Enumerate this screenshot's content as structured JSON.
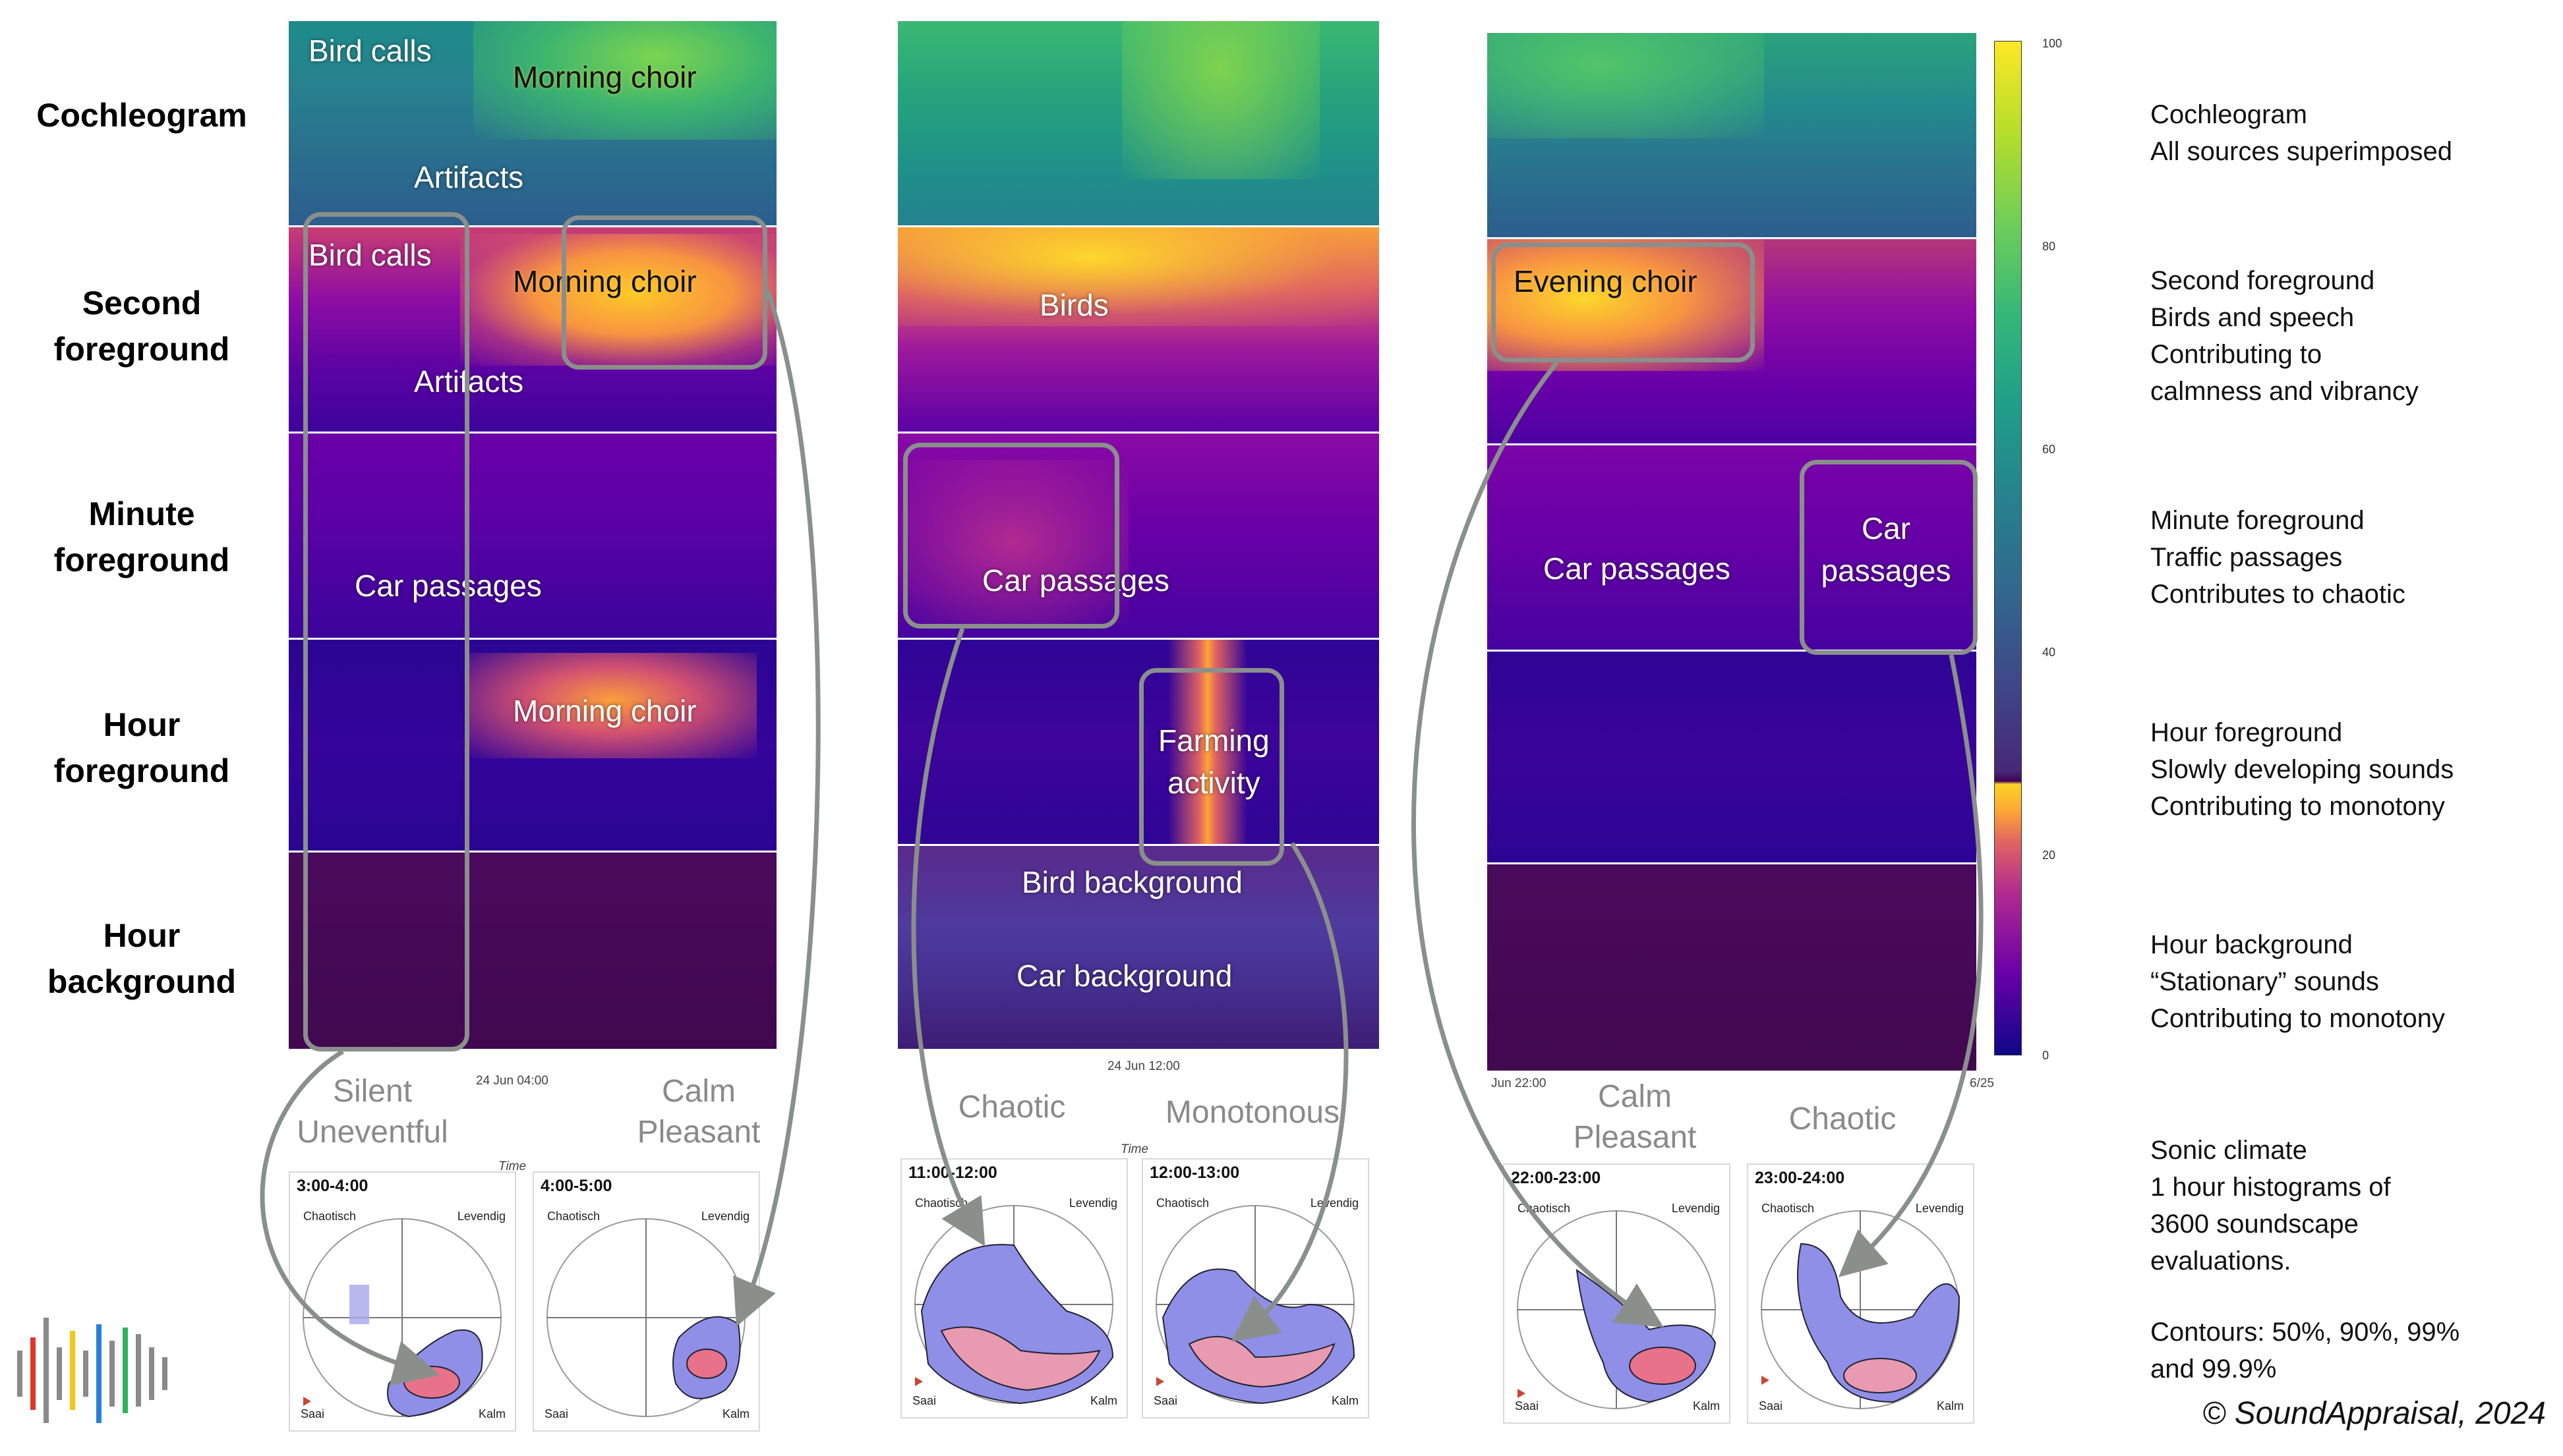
{
  "row_labels": {
    "cochleogram": "Cochleogram",
    "second_foreground": "Second\nforeground",
    "minute_foreground": "Minute\nforeground",
    "hour_foreground": "Hour\nforeground",
    "hour_background": "Hour\nbackground"
  },
  "descriptions": {
    "cochleogram": "Cochleogram\nAll sources superimposed",
    "second_foreground": "Second foreground\nBirds and speech\nContributing to\ncalmness and vibrancy",
    "minute_foreground": "Minute foreground\nTraffic passages\nContributes to chaotic",
    "hour_foreground": "Hour foreground\nSlowly developing sounds\nContributing to monotony",
    "hour_background": "Hour background\n“Stationary” sounds\nContributing to monotony",
    "sonic_climate": "Sonic climate\n1 hour histograms of\n3600 soundscape\nevaluations.",
    "contours": "Contours: 50%, 90%, 99%\nand 99.9%"
  },
  "panel1": {
    "bird_calls_1": "Bird calls",
    "morning_choir_1": "Morning choir",
    "artifacts_1": "Artifacts",
    "bird_calls_2": "Bird calls",
    "morning_choir_2": "Morning choir",
    "artifacts_2": "Artifacts",
    "car_passages": "Car passages",
    "morning_choir_3": "Morning choir",
    "time_tick": "24 Jun 04:00",
    "time_axis": "Time"
  },
  "panel2": {
    "birds": "Birds",
    "car_passages": "Car passages",
    "farming_activity": "Farming\nactivity",
    "bird_background": "Bird background",
    "car_background": "Car background",
    "time_tick": "24 Jun 12:00",
    "time_axis": "Time"
  },
  "panel3": {
    "evening_choir": "Evening choir",
    "car_passages_1": "Car passages",
    "car_passages_2": "Car\npassages",
    "time_tick": "Jun 22:00",
    "time_end": "6/25"
  },
  "classifications": {
    "silent_uneventful": "Silent\nUneventful",
    "calm_pleasant_1": "Calm\nPleasant",
    "chaotic_1": "Chaotic",
    "monotonous": "Monotonous",
    "calm_pleasant_2": "Calm\nPleasant",
    "chaotic_2": "Chaotic"
  },
  "histograms": [
    {
      "title": "3:00-4:00",
      "chaotic": "Chaotisch",
      "lively": "Levendig",
      "boring": "Saai",
      "calm": "Kalm"
    },
    {
      "title": "4:00-5:00",
      "chaotic": "Chaotisch",
      "lively": "Levendig",
      "boring": "Saai",
      "calm": "Kalm"
    },
    {
      "title": "11:00-12:00",
      "chaotic": "Chaotisch",
      "lively": "Levendig",
      "boring": "Saai",
      "calm": "Kalm"
    },
    {
      "title": "12:00-13:00",
      "chaotic": "Chaotisch",
      "lively": "Levendig",
      "boring": "Saai",
      "calm": "Kalm"
    },
    {
      "title": "22:00-23:00",
      "chaotic": "Chaotisch",
      "lively": "Levendig",
      "boring": "Saai",
      "calm": "Kalm"
    },
    {
      "title": "23:00-24:00",
      "chaotic": "Chaotisch",
      "lively": "Levendig",
      "boring": "Saai",
      "calm": "Kalm"
    }
  ],
  "colorbar": {
    "ticks": [
      "100",
      "80",
      "60",
      "40",
      "20",
      "0"
    ]
  },
  "copyright": "© SoundAppraisal, 2024",
  "colors": {
    "arrow_gray": "#8a8f8c",
    "viridis_top": "#fde725",
    "plasma_top": "#f0f921"
  }
}
